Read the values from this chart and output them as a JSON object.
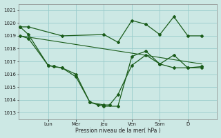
{
  "bg_color": "#cce8e4",
  "grid_color": "#99cccc",
  "line_color": "#1a5c1a",
  "xlabel": "Pression niveau de la mer( hPa )",
  "ylim": [
    1012.5,
    1021.5
  ],
  "yticks": [
    1013,
    1014,
    1015,
    1016,
    1017,
    1018,
    1019,
    1020,
    1021
  ],
  "xlim": [
    -0.05,
    7.05
  ],
  "day_tick_positions": [
    1.0,
    2.0,
    3.0,
    4.0,
    5.0,
    6.0
  ],
  "day_labels": [
    "Lun",
    "Mer",
    "Jeu",
    "Ven",
    "Sam",
    "D"
  ],
  "line_zigzag1": {
    "x": [
      0.0,
      0.3,
      1.0,
      1.2,
      1.5,
      2.0,
      2.5,
      3.0,
      3.2,
      3.5,
      4.0,
      4.5,
      5.0,
      5.5,
      6.0,
      6.5
    ],
    "y": [
      1019.0,
      1018.8,
      1016.7,
      1016.6,
      1016.5,
      1015.8,
      1013.8,
      1013.6,
      1013.6,
      1014.4,
      1016.7,
      1017.5,
      1016.8,
      1016.5,
      1016.5,
      1016.5
    ]
  },
  "line_zigzag2": {
    "x": [
      0.0,
      0.3,
      1.0,
      1.2,
      1.5,
      2.0,
      2.5,
      2.8,
      3.0,
      3.5,
      4.0,
      4.5,
      5.0,
      5.5,
      6.0,
      6.5
    ],
    "y": [
      1019.7,
      1019.1,
      1016.7,
      1016.6,
      1016.5,
      1016.0,
      1013.8,
      1013.6,
      1013.5,
      1013.5,
      1017.4,
      1017.8,
      1016.8,
      1017.5,
      1016.5,
      1016.6
    ]
  },
  "line_upper": {
    "x": [
      0.0,
      0.3,
      1.5,
      3.0,
      3.5,
      4.0,
      4.5,
      5.0,
      5.5,
      6.0,
      6.5
    ],
    "y": [
      1019.7,
      1019.7,
      1019.0,
      1019.1,
      1018.5,
      1020.2,
      1019.9,
      1019.1,
      1020.5,
      1019.0,
      1019.0
    ]
  },
  "line_trend": {
    "x": [
      0.0,
      6.5
    ],
    "y": [
      1019.0,
      1016.8
    ]
  }
}
